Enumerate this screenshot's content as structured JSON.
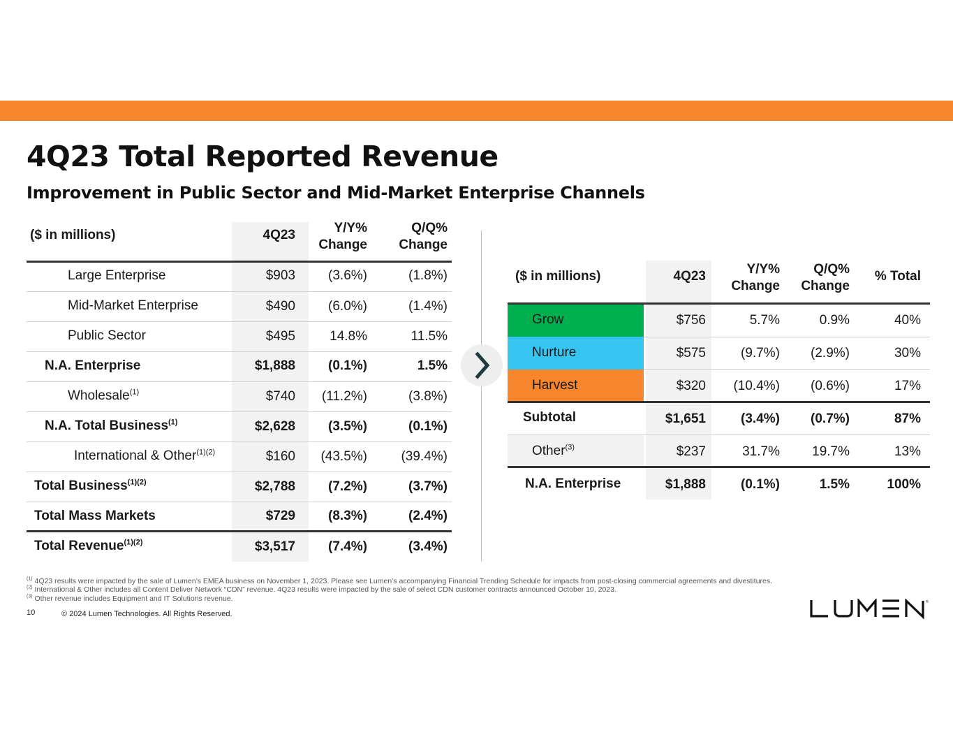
{
  "title": "4Q23 Total Reported Revenue",
  "subtitle": "Improvement in Public Sector and Mid-Market Enterprise Channels",
  "left_table": {
    "headers": {
      "label": "($ in millions)",
      "period": "4Q23",
      "yy_1": "Y/Y%",
      "yy_2": "Change",
      "qq_1": "Q/Q%",
      "qq_2": "Change"
    },
    "rows": [
      {
        "label": "Large Enterprise",
        "sup": "",
        "v": "$903",
        "yy": "(3.6%)",
        "qq": "(1.8%)"
      },
      {
        "label": "Mid-Market Enterprise",
        "sup": "",
        "v": "$490",
        "yy": "(6.0%)",
        "qq": "(1.4%)"
      },
      {
        "label": "Public Sector",
        "sup": "",
        "v": "$495",
        "yy": "14.8%",
        "qq": "11.5%"
      },
      {
        "label": "N.A. Enterprise",
        "sup": "",
        "v": "$1,888",
        "yy": "(0.1%)",
        "qq": "1.5%"
      },
      {
        "label": "Wholesale",
        "sup": "(1)",
        "v": "$740",
        "yy": "(11.2%)",
        "qq": "(3.8%)"
      },
      {
        "label": "N.A. Total Business",
        "sup": "(1)",
        "v": "$2,628",
        "yy": "(3.5%)",
        "qq": "(0.1%)"
      },
      {
        "label": "International & Other",
        "sup": "(1)(2)",
        "v": "$160",
        "yy": "(43.5%)",
        "qq": "(39.4%)"
      },
      {
        "label": "Total Business",
        "sup": "(1)(2)",
        "v": "$2,788",
        "yy": "(7.2%)",
        "qq": "(3.7%)"
      },
      {
        "label": "Total Mass Markets",
        "sup": "",
        "v": "$729",
        "yy": "(8.3%)",
        "qq": "(2.4%)"
      },
      {
        "label": "Total Revenue",
        "sup": "(1)(2)",
        "v": "$3,517",
        "yy": "(7.4%)",
        "qq": "(3.4%)"
      }
    ]
  },
  "right_table": {
    "headers": {
      "label": "($ in millions)",
      "period": "4Q23",
      "yy_1": "Y/Y%",
      "yy_2": "Change",
      "qq_1": "Q/Q%",
      "qq_2": "Change",
      "pct": "% Total"
    },
    "rows": [
      {
        "label": "Grow",
        "sup": "",
        "v": "$756",
        "yy": "5.7%",
        "qq": "0.9%",
        "pct": "40%"
      },
      {
        "label": "Nurture",
        "sup": "",
        "v": "$575",
        "yy": "(9.7%)",
        "qq": "(2.9%)",
        "pct": "30%"
      },
      {
        "label": "Harvest",
        "sup": "",
        "v": "$320",
        "yy": "(10.4%)",
        "qq": "(0.6%)",
        "pct": "17%"
      },
      {
        "label": "Subtotal",
        "sup": "",
        "v": "$1,651",
        "yy": "(3.4%)",
        "qq": "(0.7%)",
        "pct": "87%"
      },
      {
        "label": "Other",
        "sup": "(3)",
        "v": "$237",
        "yy": "31.7%",
        "qq": "19.7%",
        "pct": "13%"
      },
      {
        "label": "N.A. Enterprise",
        "sup": "",
        "v": "$1,888",
        "yy": "(0.1%)",
        "qq": "1.5%",
        "pct": "100%"
      }
    ]
  },
  "colors": {
    "band": "#f7852c",
    "grow": "#00b050",
    "nurture": "#36c5f0",
    "harvest": "#f7852c"
  },
  "footnotes": [
    {
      "mark": "(1)",
      "text": "4Q23 results were impacted by the sale of Lumen’s EMEA business on November 1, 2023. Please see Lumen’s accompanying Financial Trending Schedule for impacts from post-closing commercial agreements and divestitures."
    },
    {
      "mark": "(2)",
      "text": "International & Other includes all Content Deliver Network “CDN” revenue. 4Q23 results were impacted by the sale of select CDN customer contracts announced October 10, 2023."
    },
    {
      "mark": "(3)",
      "text": "Other revenue includes Equipment and IT Solutions revenue."
    }
  ],
  "page_number": "10",
  "copyright": "© 2024 Lumen Technologies. All Rights Reserved.",
  "logo_text": "LUMEN"
}
